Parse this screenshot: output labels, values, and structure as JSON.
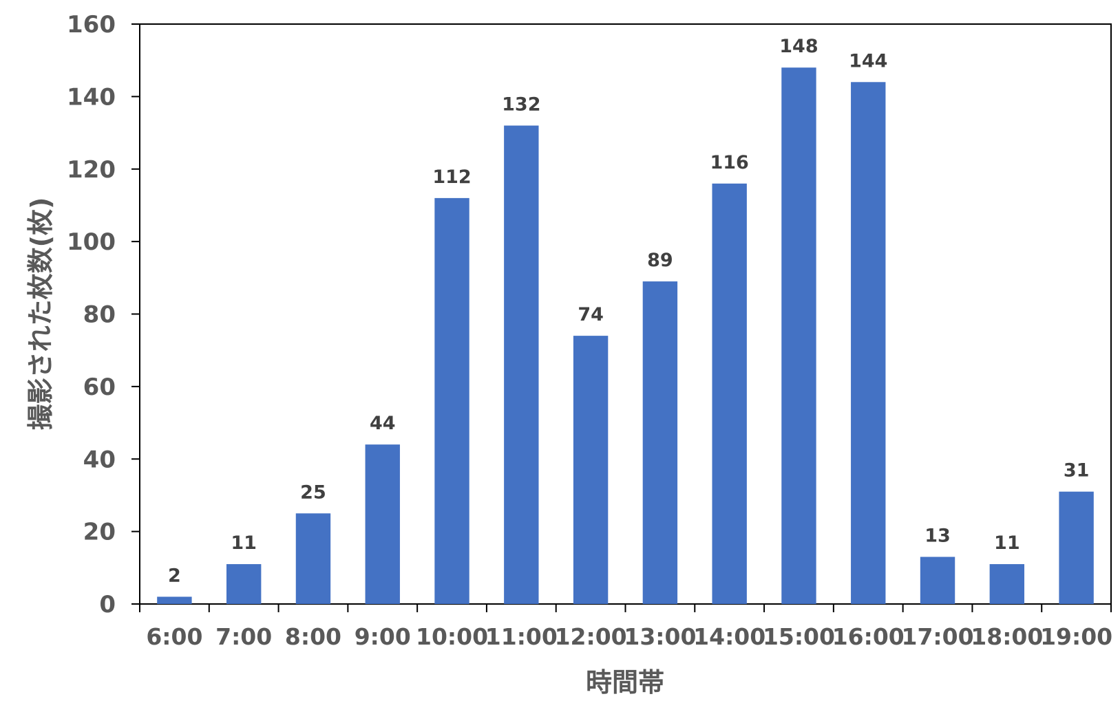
{
  "chart_data": {
    "type": "bar",
    "categories": [
      "6:00",
      "7:00",
      "8:00",
      "9:00",
      "10:00",
      "11:00",
      "12:00",
      "13:00",
      "14:00",
      "15:00",
      "16:00",
      "17:00",
      "18:00",
      "19:00"
    ],
    "values": [
      2,
      11,
      25,
      44,
      112,
      132,
      74,
      89,
      116,
      148,
      144,
      13,
      11,
      31
    ],
    "data_labels": [
      "2",
      "11",
      "25",
      "44",
      "112",
      "132",
      "74",
      "89",
      "116",
      "148",
      "144",
      "13",
      "11",
      "31"
    ],
    "title": "",
    "xlabel": "時間帯",
    "ylabel": "撮影された枚数(枚)",
    "ylim": [
      0,
      160
    ],
    "yticks": [
      0,
      20,
      40,
      60,
      80,
      100,
      120,
      140,
      160
    ],
    "ytick_labels": [
      "0",
      "20",
      "40",
      "60",
      "80",
      "100",
      "120",
      "140",
      "160"
    ],
    "grid": false,
    "legend": "none",
    "bar_color": "#4472C4",
    "axis_color": "#000000"
  }
}
